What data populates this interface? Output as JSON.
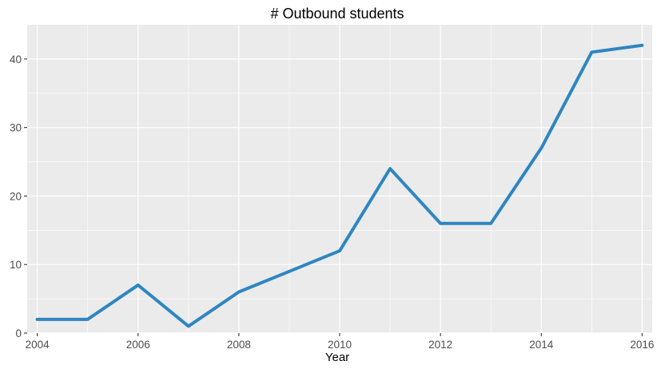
{
  "chart_data": {
    "type": "line",
    "title": "# Outbound students",
    "xlabel": "Year",
    "ylabel": "",
    "x": [
      2004,
      2005,
      2006,
      2007,
      2008,
      2009,
      2010,
      2011,
      2012,
      2013,
      2014,
      2015,
      2016
    ],
    "series": [
      {
        "values": [
          2,
          2,
          7,
          1,
          6,
          9,
          12,
          24,
          16,
          16,
          27,
          41,
          42
        ],
        "color": "#2e86c1"
      }
    ],
    "xlim": [
      2003.8,
      2016.2
    ],
    "ylim": [
      0,
      45
    ],
    "x_ticks": [
      "2004",
      "2006",
      "2008",
      "2010",
      "2012",
      "2014",
      "2016"
    ],
    "y_ticks": [
      "0",
      "10",
      "20",
      "30",
      "40"
    ],
    "grid": true,
    "panel_background": "#ebebeb",
    "gridline_color": "#ffffff"
  }
}
